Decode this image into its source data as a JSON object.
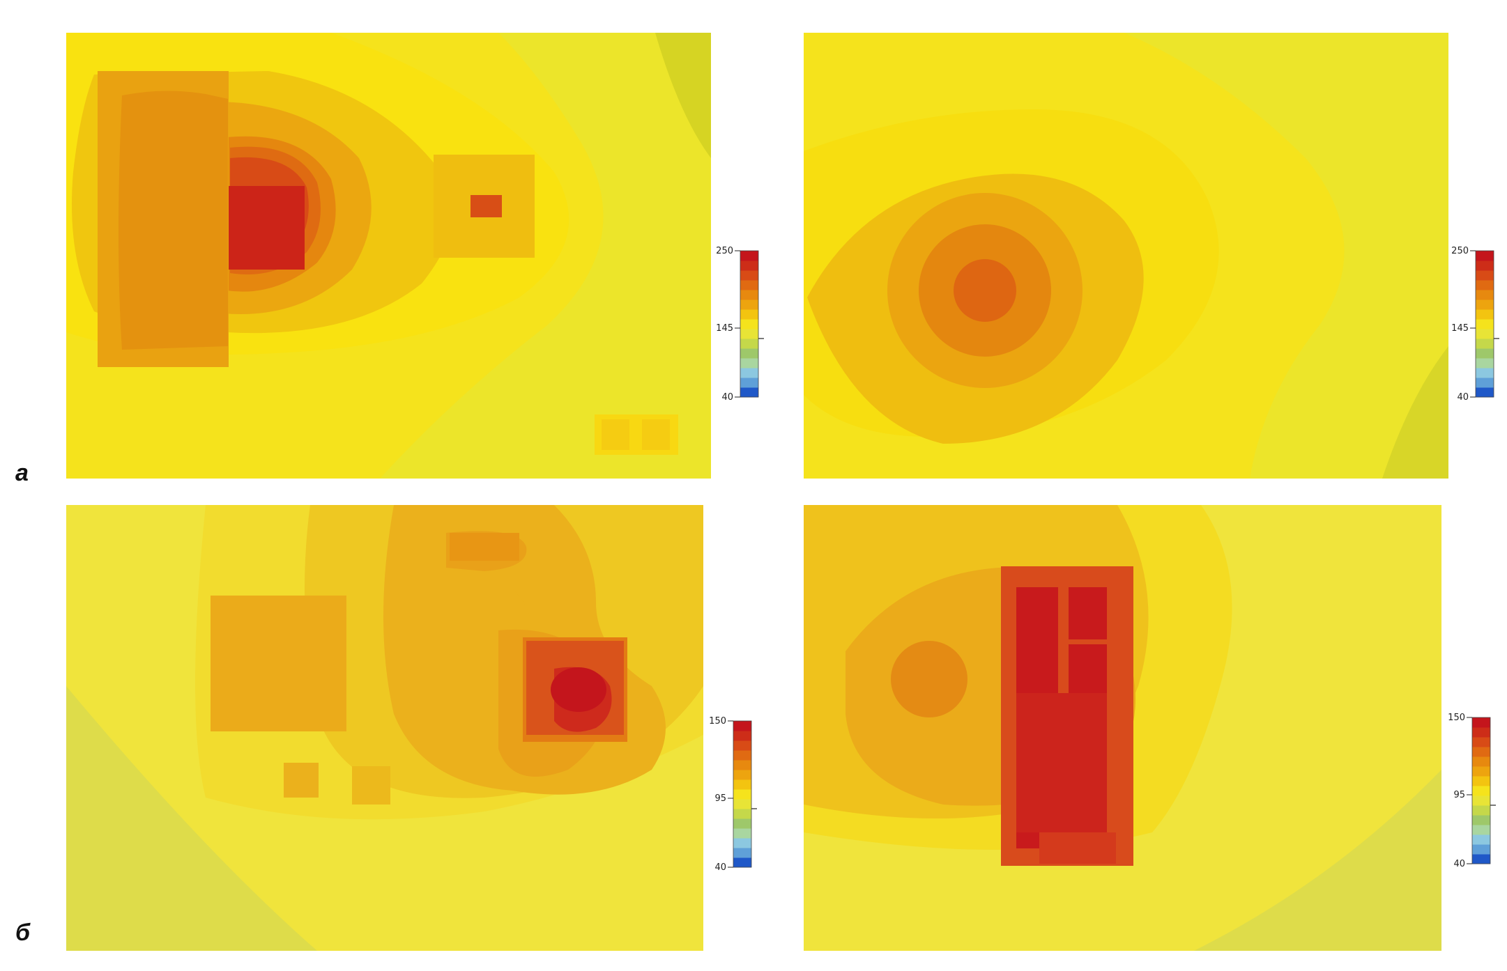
{
  "figure": {
    "row_labels": [
      "а",
      "б"
    ]
  },
  "colorbars": [
    {
      "id": "a-left",
      "ticks": [
        "250",
        "145",
        "40"
      ]
    },
    {
      "id": "a-right",
      "ticks": [
        "250",
        "145",
        "40"
      ]
    },
    {
      "id": "b-left",
      "ticks": [
        "150",
        "95",
        "40"
      ]
    },
    {
      "id": "b-right",
      "ticks": [
        "150",
        "95",
        "40"
      ]
    }
  ],
  "palette": {
    "low": "#4a6fd0",
    "mid": "#f7e11a",
    "high": "#c4151c",
    "stops": [
      "#1f58c8",
      "#5fa0d8",
      "#8cc8e0",
      "#a9d6a0",
      "#9ec86a",
      "#c5d84a",
      "#e8e436",
      "#f5e31c",
      "#f3c410",
      "#eda40f",
      "#e7890f",
      "#e06a12",
      "#d84b16",
      "#cd2d18",
      "#c4151c"
    ]
  }
}
